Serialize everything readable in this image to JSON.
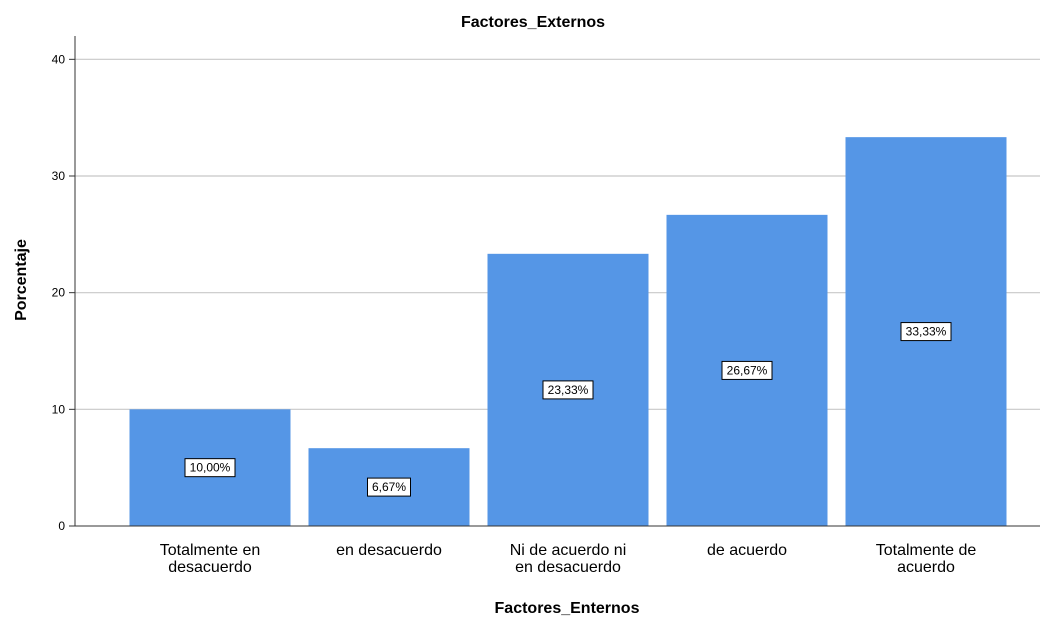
{
  "chart_data": {
    "type": "bar",
    "title": "Factores_Externos",
    "xlabel": "Factores_Enternos",
    "ylabel": "Porcentaje",
    "categories": [
      [
        "Totalmente en",
        "desacuerdo"
      ],
      [
        "en desacuerdo"
      ],
      [
        "Ni de acuerdo ni",
        "en desacuerdo"
      ],
      [
        "de acuerdo"
      ],
      [
        "Totalmente de",
        "acuerdo"
      ]
    ],
    "values": [
      10.0,
      6.67,
      23.33,
      26.67,
      33.33
    ],
    "data_labels": [
      "10,00%",
      "6,67%",
      "23,33%",
      "26,67%",
      "33,33%"
    ],
    "ylim": [
      0,
      42
    ],
    "yticks": [
      0,
      10,
      20,
      30,
      40
    ],
    "grid": true,
    "legend": "none",
    "colors": {
      "bar": "#5596e6",
      "gridline": "#c8c8c8"
    }
  }
}
